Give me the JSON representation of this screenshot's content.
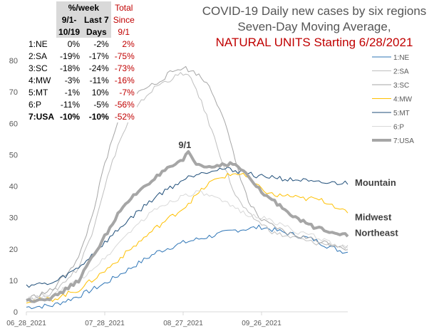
{
  "chart_data": {
    "type": "line",
    "title_lines": [
      "COVID-19 Daily new cases by six regions",
      "Seven-Day Moving Average,",
      "NATURAL UNITS Starting 6/28/2021"
    ],
    "title_colors": [
      "#555555",
      "#555555",
      "#c00000"
    ],
    "x_tick_labels": [
      "06_28_2021",
      "07_28_2021",
      "08_27_2021",
      "09_26_2021"
    ],
    "x_tick_days": [
      0,
      30,
      60,
      90
    ],
    "x_range": [
      0,
      123
    ],
    "ylim": [
      0,
      80
    ],
    "y_ticks": [
      0,
      10,
      20,
      30,
      40,
      50,
      60,
      70,
      80
    ],
    "grid": false,
    "legend_position": "right",
    "series": [
      {
        "name": "1:NE",
        "color": "#2e75b6",
        "width": 1,
        "x": [
          0,
          10,
          20,
          30,
          40,
          50,
          60,
          70,
          75,
          80,
          90,
          100,
          110,
          115,
          120,
          123
        ],
        "y": [
          1.5,
          2,
          5,
          9,
          14,
          19,
          22,
          24,
          25,
          26,
          27,
          25,
          23,
          21,
          19.5,
          19
        ]
      },
      {
        "name": "2:SA",
        "color": "#bfbfbf",
        "width": 1,
        "x": [
          0,
          10,
          20,
          25,
          30,
          35,
          40,
          45,
          50,
          55,
          60,
          62,
          65,
          70,
          75,
          80,
          85,
          90,
          95,
          100,
          105,
          110,
          115,
          120,
          123
        ],
        "y": [
          4,
          6,
          14,
          25,
          40,
          53,
          62,
          68,
          72,
          74,
          76,
          75,
          71,
          60,
          48,
          37,
          31,
          28,
          25,
          24,
          23,
          22,
          21.5,
          21,
          20.5
        ]
      },
      {
        "name": "3:SC",
        "color": "#a6a6a6",
        "width": 1,
        "x": [
          0,
          10,
          20,
          25,
          30,
          35,
          40,
          45,
          50,
          55,
          60,
          62,
          65,
          70,
          75,
          80,
          85,
          90,
          95,
          100,
          105,
          110,
          115,
          120,
          123
        ],
        "y": [
          4,
          7,
          17,
          30,
          47,
          60,
          68,
          71,
          73,
          76,
          78,
          77,
          76,
          72,
          63,
          48,
          35,
          29,
          27,
          25,
          24,
          23,
          22,
          21,
          20
        ]
      },
      {
        "name": "4:MW",
        "color": "#ffc000",
        "width": 1,
        "x": [
          0,
          10,
          20,
          30,
          40,
          50,
          60,
          65,
          70,
          75,
          80,
          83,
          85,
          90,
          95,
          100,
          105,
          110,
          115,
          120,
          123
        ],
        "y": [
          3.5,
          4,
          7,
          13,
          20,
          27,
          33,
          37,
          41,
          43,
          44,
          44,
          42,
          39,
          37,
          37,
          36,
          36,
          35,
          33,
          31
        ]
      },
      {
        "name": "5:MT",
        "color": "#1f4e79",
        "width": 1,
        "x": [
          0,
          10,
          20,
          30,
          40,
          50,
          60,
          65,
          70,
          75,
          80,
          85,
          90,
          95,
          100,
          105,
          110,
          115,
          120,
          123
        ],
        "y": [
          8.5,
          9,
          14,
          22,
          30,
          37,
          42,
          44,
          45,
          45.5,
          45,
          44,
          43,
          43,
          42,
          42,
          41,
          41,
          41,
          41
        ]
      },
      {
        "name": "6:P",
        "color": "#d9d9d9",
        "width": 1,
        "x": [
          0,
          10,
          20,
          30,
          40,
          50,
          60,
          65,
          70,
          75,
          80,
          85,
          90,
          95,
          100,
          105,
          110,
          115,
          120,
          123
        ],
        "y": [
          4,
          5,
          10,
          17,
          26,
          33,
          37,
          38,
          37,
          35,
          33,
          31,
          30,
          28.5,
          27,
          25,
          24,
          22.5,
          21,
          20
        ]
      },
      {
        "name": "7:USA",
        "color": "#a6a6a6",
        "width": 4,
        "x": [
          0,
          5,
          10,
          15,
          20,
          25,
          30,
          35,
          40,
          45,
          50,
          55,
          60,
          62,
          65,
          70,
          75,
          80,
          85,
          90,
          95,
          100,
          105,
          110,
          115,
          120,
          123
        ],
        "y": [
          3.5,
          4,
          4.5,
          7,
          10,
          17,
          24,
          31,
          36,
          40,
          43,
          46,
          48,
          51,
          47,
          46,
          47,
          47,
          43,
          38,
          35,
          32,
          29,
          27,
          26,
          25,
          24.5
        ]
      }
    ],
    "annotations": [
      {
        "text": "9/1",
        "x": 62,
        "y": 53
      },
      {
        "text": "Mountain",
        "x": 125,
        "y": 41
      },
      {
        "text": "Midwest",
        "x": 125,
        "y": 30
      },
      {
        "text": "Northeast",
        "x": 125,
        "y": 25
      }
    ],
    "annotation_color": "#404040"
  },
  "table": {
    "headers": [
      {
        "text": "%/week",
        "style": "h"
      },
      {
        "text": "Total",
        "style": "hr"
      }
    ],
    "subheaders": [
      {
        "text": "9/1-",
        "style": "h"
      },
      {
        "text": "Last 7",
        "style": "h"
      },
      {
        "text": "Since",
        "style": "hr"
      }
    ],
    "subheaders2": [
      {
        "text": "10/19",
        "style": "h"
      },
      {
        "text": "Days",
        "style": "h"
      },
      {
        "text": "9/1",
        "style": "hr"
      }
    ],
    "rows": [
      {
        "region": "1:NE",
        "a": "0%",
        "b": "-2%",
        "c": "2%"
      },
      {
        "region": "2:SA",
        "a": "-19%",
        "b": "-17%",
        "c": "-75%"
      },
      {
        "region": "3:SC",
        "a": "-18%",
        "b": "-24%",
        "c": "-73%"
      },
      {
        "region": "4:MW",
        "a": "-3%",
        "b": "-11%",
        "c": "-16%"
      },
      {
        "region": "5:MT",
        "a": "-1%",
        "b": "10%",
        "c": "-7%"
      },
      {
        "region": "6:P",
        "a": "-11%",
        "b": "-5%",
        "c": "-56%"
      },
      {
        "region": "7:USA",
        "a": "-10%",
        "b": "-10%",
        "c": "-52%",
        "bold": true
      }
    ]
  }
}
